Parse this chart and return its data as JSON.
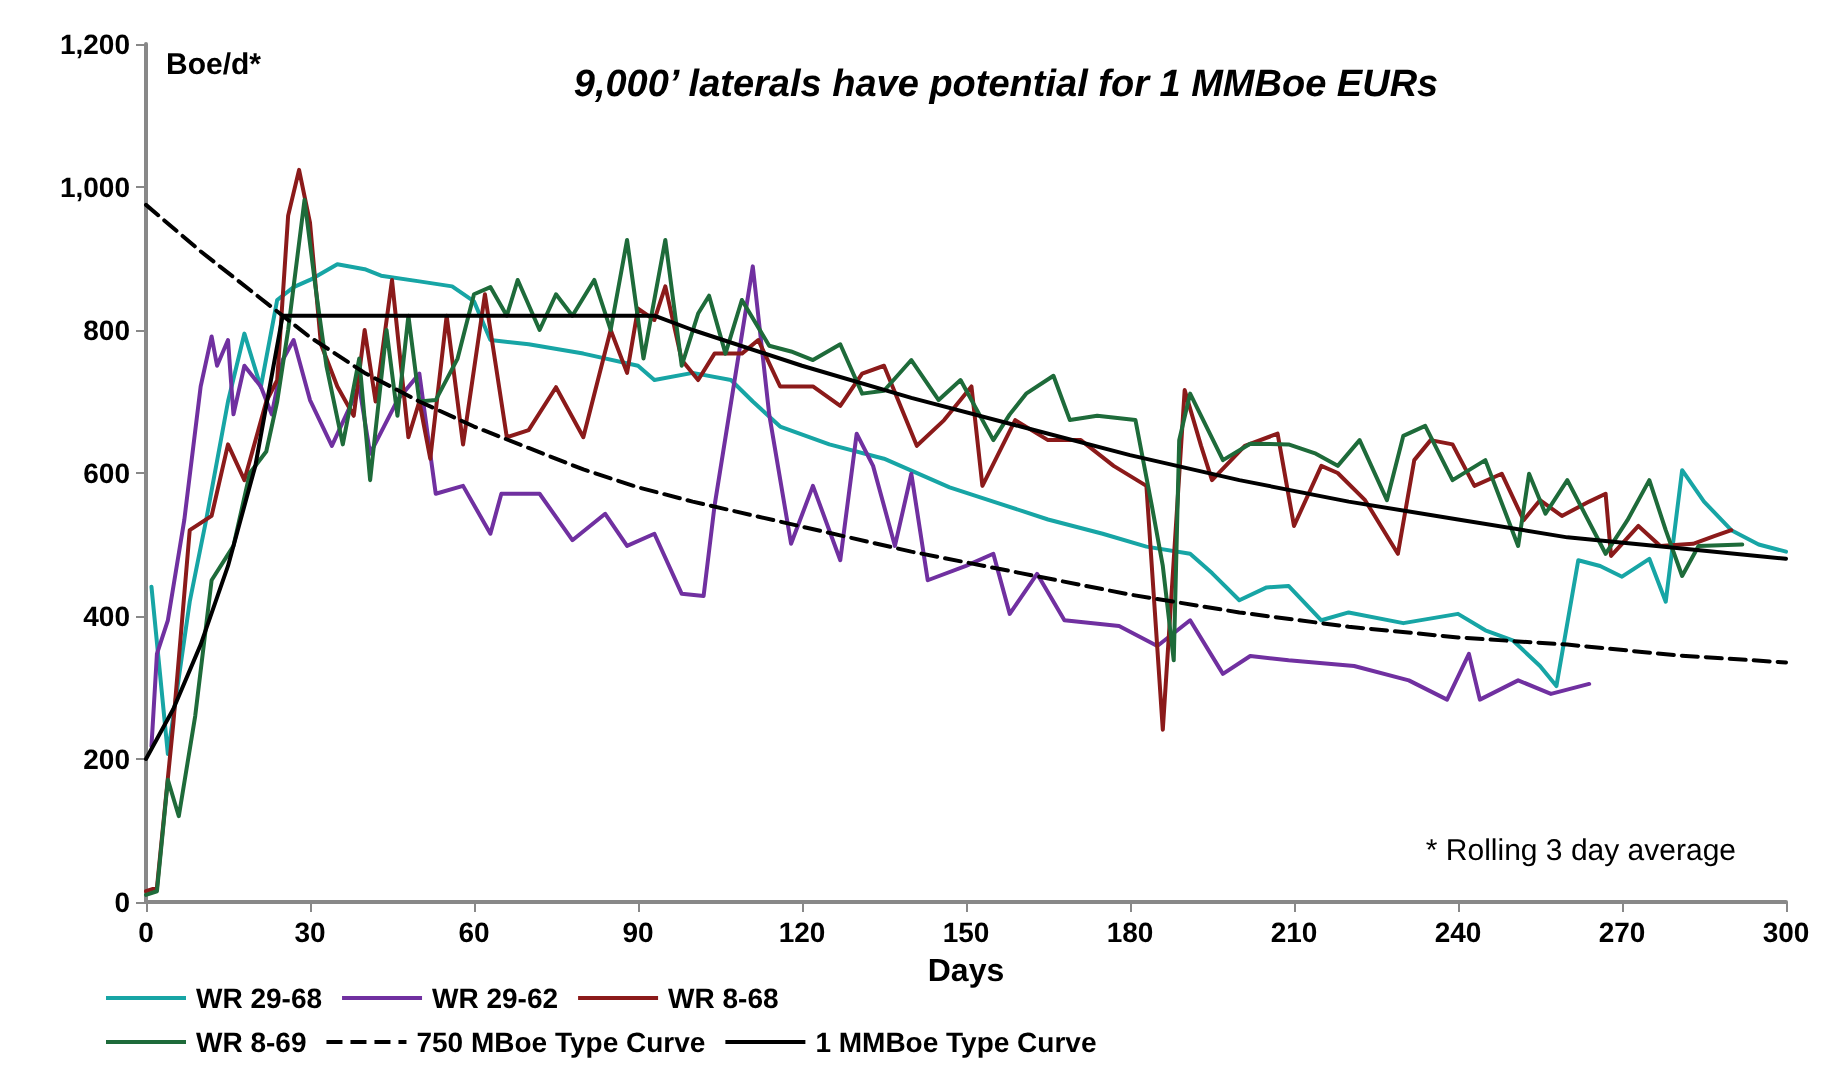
{
  "chart_data": {
    "type": "line",
    "title": "9,000’ laterals have potential for 1 MMBoe EURs",
    "xlabel": "Days",
    "ylabel": "Boe/d*",
    "annotations": [
      "* Rolling 3 day average"
    ],
    "xlim": [
      0,
      300
    ],
    "xticks": [
      0,
      30,
      60,
      90,
      120,
      150,
      180,
      210,
      240,
      270,
      300
    ],
    "ylim": [
      0,
      1200
    ],
    "yticks": [
      0,
      200,
      400,
      600,
      800,
      {
        "value": 1000,
        "label": "1,000"
      },
      {
        "value": 1200,
        "label": "1,200"
      }
    ],
    "grid": false,
    "legend": "bottom",
    "marker": "none",
    "series": [
      {
        "name": "WR 29-68",
        "color": "#17a5a5",
        "line_style": "solid",
        "x": [
          1,
          4,
          8,
          11,
          15,
          18,
          21,
          24,
          27,
          30,
          35,
          40,
          43,
          50,
          56,
          60,
          63,
          70,
          80,
          90,
          93,
          100,
          107,
          111,
          116,
          125,
          135,
          147,
          155,
          165,
          175,
          183,
          191,
          195,
          200,
          205,
          209,
          215,
          220,
          230,
          240,
          245,
          250,
          255,
          258,
          262,
          266,
          270,
          275,
          278,
          281,
          285,
          290,
          295,
          300
        ],
        "values": [
          441,
          207,
          420,
          534,
          700,
          795,
          720,
          842,
          860,
          870,
          892,
          885,
          876,
          868,
          861,
          840,
          786,
          780,
          767,
          750,
          730,
          740,
          730,
          700,
          665,
          640,
          620,
          580,
          560,
          535,
          515,
          497,
          487,
          460,
          422,
          440,
          442,
          394,
          405,
          390,
          403,
          380,
          366,
          330,
          302,
          478,
          470,
          455,
          480,
          420,
          604,
          560,
          520,
          500,
          490
        ]
      },
      {
        "name": "WR 29-62",
        "color": "#7030a0",
        "line_style": "solid",
        "x": [
          1,
          2,
          4,
          7,
          10,
          12,
          13,
          15,
          16,
          18,
          21,
          23,
          25,
          27,
          30,
          34,
          39,
          41,
          46,
          50,
          53,
          58,
          63,
          65,
          72,
          78,
          84,
          88,
          93,
          98,
          102,
          104,
          111,
          114,
          118,
          122,
          127,
          130,
          133,
          137,
          140,
          143,
          150,
          155,
          158,
          163,
          168,
          178,
          185,
          191,
          197,
          202,
          209,
          221,
          231,
          238,
          242,
          244,
          251,
          257,
          264
        ],
        "values": [
          218,
          347,
          394,
          534,
          721,
          791,
          750,
          786,
          682,
          750,
          721,
          682,
          758,
          786,
          702,
          638,
          721,
          627,
          702,
          739,
          571,
          582,
          515,
          571,
          571,
          506,
          543,
          498,
          515,
          431,
          428,
          554,
          889,
          682,
          501,
          582,
          478,
          655,
          610,
          498,
          599,
          450,
          470,
          487,
          403,
          459,
          394,
          386,
          358,
          394,
          319,
          344,
          338,
          330,
          310,
          283,
          347,
          283,
          310,
          291,
          305
        ]
      },
      {
        "name": "WR 8-68",
        "color": "#8b1a1a",
        "line_style": "solid",
        "x": [
          0,
          2,
          5,
          8,
          12,
          15,
          18,
          22,
          24,
          26,
          28,
          30,
          32,
          35,
          38,
          40,
          42,
          45,
          48,
          50,
          52,
          55,
          58,
          62,
          66,
          70,
          75,
          80,
          85,
          88,
          90,
          93,
          95,
          98,
          101,
          104,
          109,
          112,
          116,
          122,
          127,
          131,
          135,
          141,
          146,
          151,
          153,
          159,
          165,
          171,
          177,
          183,
          186,
          188,
          190,
          193,
          195,
          201,
          207,
          210,
          215,
          218,
          223,
          229,
          232,
          235,
          239,
          243,
          248,
          252,
          255,
          259,
          264,
          267,
          268,
          273,
          277,
          283,
          287,
          290
        ],
        "values": [
          15,
          20,
          250,
          520,
          540,
          640,
          590,
          700,
          730,
          960,
          1024,
          950,
          780,
          721,
          680,
          800,
          700,
          870,
          650,
          700,
          620,
          820,
          640,
          850,
          650,
          660,
          720,
          650,
          800,
          740,
          830,
          814,
          861,
          758,
          730,
          767,
          767,
          786,
          721,
          721,
          694,
          739,
          750,
          638,
          674,
          721,
          582,
          674,
          646,
          646,
          610,
          582,
          241,
          478,
          716,
          638,
          590,
          638,
          655,
          526,
          610,
          600,
          562,
          487,
          618,
          646,
          640,
          582,
          599,
          534,
          562,
          540,
          560,
          571,
          484,
          526,
          498,
          501,
          512,
          520
        ]
      },
      {
        "name": "WR 8-69",
        "color": "#1e6b3a",
        "line_style": "solid",
        "x": [
          0,
          2,
          4,
          6,
          9,
          12,
          16,
          19,
          22,
          24,
          26,
          29,
          31,
          33,
          36,
          39,
          41,
          44,
          46,
          48,
          50,
          53,
          57,
          60,
          63,
          66,
          68,
          72,
          75,
          78,
          82,
          85,
          88,
          91,
          95,
          98,
          101,
          103,
          106,
          109,
          114,
          118,
          122,
          127,
          131,
          135,
          140,
          145,
          149,
          155,
          158,
          161,
          166,
          169,
          174,
          181,
          184,
          186,
          188,
          189,
          191,
          197,
          202,
          209,
          214,
          218,
          222,
          227,
          230,
          234,
          239,
          245,
          251,
          253,
          256,
          260,
          267,
          271,
          275,
          278,
          281,
          284,
          292
        ],
        "values": [
          10,
          15,
          171,
          120,
          260,
          450,
          498,
          600,
          630,
          700,
          800,
          982,
          860,
          750,
          640,
          760,
          590,
          800,
          680,
          820,
          700,
          702,
          760,
          850,
          860,
          820,
          870,
          800,
          850,
          820,
          870,
          800,
          926,
          760,
          926,
          750,
          823,
          848,
          767,
          842,
          778,
          770,
          758,
          780,
          711,
          715,
          758,
          702,
          730,
          646,
          682,
          711,
          736,
          674,
          680,
          674,
          554,
          470,
          338,
          646,
          711,
          618,
          641,
          640,
          627,
          610,
          646,
          562,
          652,
          666,
          590,
          618,
          498,
          599,
          543,
          590,
          487,
          534,
          590,
          520,
          456,
          498,
          500
        ]
      },
      {
        "name": "750 MBoe Type Curve",
        "color": "#000000",
        "line_style": "dashed",
        "x": [
          0,
          10,
          20,
          30,
          40,
          50,
          60,
          70,
          80,
          90,
          100,
          120,
          140,
          160,
          180,
          200,
          220,
          240,
          260,
          280,
          300
        ],
        "values": [
          975,
          910,
          850,
          790,
          740,
          700,
          665,
          635,
          605,
          580,
          560,
          525,
          490,
          460,
          430,
          405,
          385,
          370,
          360,
          345,
          335
        ]
      },
      {
        "name": "1 MMBoe Type Curve",
        "color": "#000000",
        "line_style": "solid",
        "x": [
          0,
          5,
          10,
          15,
          20,
          25,
          93,
          100,
          120,
          140,
          160,
          180,
          200,
          220,
          240,
          260,
          280,
          300
        ],
        "values": [
          200,
          270,
          360,
          470,
          610,
          820,
          820,
          800,
          750,
          705,
          665,
          625,
          590,
          560,
          535,
          510,
          495,
          480
        ]
      }
    ]
  }
}
